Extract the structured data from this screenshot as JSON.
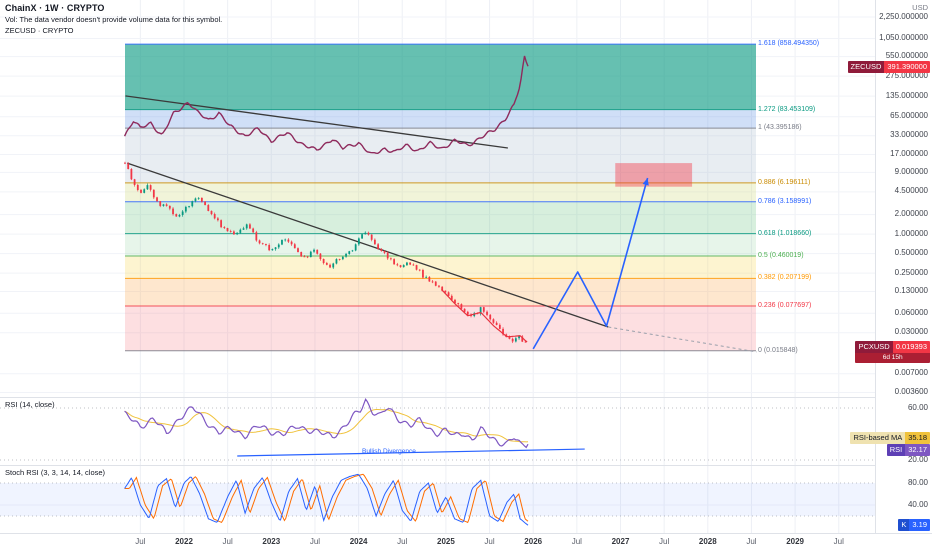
{
  "meta": {
    "symbol_title": "ChainX · 1W · CRYPTO",
    "vol_note": "Vol: The data vendor doesn't provide volume data for this symbol.",
    "overlay_title": "ZECUSD · CRYPTO"
  },
  "axis": {
    "currency_label": "USD",
    "price_ticks": [
      {
        "label": "2,250.000000",
        "value": 2250
      },
      {
        "label": "1,050.000000",
        "value": 1050
      },
      {
        "label": "550.000000",
        "value": 550
      },
      {
        "label": "275.000000",
        "value": 275
      },
      {
        "label": "135.000000",
        "value": 135
      },
      {
        "label": "65.000000",
        "value": 65
      },
      {
        "label": "33.000000",
        "value": 33
      },
      {
        "label": "17.000000",
        "value": 17
      },
      {
        "label": "9.000000",
        "value": 9
      },
      {
        "label": "4.500000",
        "value": 4.5
      },
      {
        "label": "2.000000",
        "value": 2
      },
      {
        "label": "1.000000",
        "value": 1
      },
      {
        "label": "0.500000",
        "value": 0.5
      },
      {
        "label": "0.250000",
        "value": 0.25
      },
      {
        "label": "0.130000",
        "value": 0.13
      },
      {
        "label": "0.060000",
        "value": 0.06
      },
      {
        "label": "0.030000",
        "value": 0.03
      },
      {
        "label": "0.007000",
        "value": 0.007
      },
      {
        "label": "0.003600",
        "value": 0.0036
      }
    ],
    "rsi_ticks": [
      {
        "label": "60.00",
        "value": 60
      },
      {
        "label": "20.00",
        "value": 20
      }
    ],
    "stoch_ticks": [
      {
        "label": "80.00",
        "value": 80
      },
      {
        "label": "40.00",
        "value": 40
      }
    ],
    "time_ticks": [
      {
        "label": "Jul",
        "t": 2021.5,
        "major": false
      },
      {
        "label": "2022",
        "t": 2022,
        "major": true
      },
      {
        "label": "Jul",
        "t": 2022.5,
        "major": false
      },
      {
        "label": "2023",
        "t": 2023,
        "major": true
      },
      {
        "label": "Jul",
        "t": 2023.5,
        "major": false
      },
      {
        "label": "2024",
        "t": 2024,
        "major": true
      },
      {
        "label": "Jul",
        "t": 2024.5,
        "major": false
      },
      {
        "label": "2025",
        "t": 2025,
        "major": true
      },
      {
        "label": "Jul",
        "t": 2025.5,
        "major": false
      },
      {
        "label": "2026",
        "t": 2026,
        "major": true
      },
      {
        "label": "Jul",
        "t": 2026.5,
        "major": false
      },
      {
        "label": "2027",
        "t": 2027,
        "major": true
      },
      {
        "label": "Jul",
        "t": 2027.5,
        "major": false
      },
      {
        "label": "2028",
        "t": 2028,
        "major": true
      },
      {
        "label": "Jul",
        "t": 2028.5,
        "major": false
      },
      {
        "label": "2029",
        "t": 2029,
        "major": true
      },
      {
        "label": "Jul",
        "t": 2029.5,
        "major": false
      }
    ]
  },
  "badges": {
    "zec": {
      "symbol": "ZECUSD",
      "price": "391.390000"
    },
    "pcx": {
      "symbol": "PCXUSD",
      "price": "0.019393",
      "countdown": "6d 15h"
    },
    "rsi_ma": {
      "label": "RSI-based MA",
      "value": "35.18"
    },
    "rsi": {
      "label": "RSI",
      "value": "32.17"
    },
    "stoch_k": {
      "label": "K",
      "value": "3.19"
    }
  },
  "rsi_pane": {
    "label": "RSI (14, close)",
    "divergence_label": "Bullish Divergence"
  },
  "stoch_pane": {
    "label": "Stoch RSI (3, 3, 14, 14, close)"
  },
  "colors": {
    "up": "#089981",
    "down": "#f23645",
    "zec_line": "#8e2a5c",
    "pcx_ma": "#e8323e",
    "arrow": "#2962ff",
    "target_box": "rgba(242,54,69,0.42)",
    "trendline": "#3a3a3a",
    "dashed_ext": "#9aa0ab",
    "rsi_line": "#7e57c2",
    "rsi_ma_line": "#f0c23c",
    "divergence": "#2962ff",
    "stoch_k": "#2962ff",
    "stoch_d": "#ff6d00",
    "badge_zec_name": "#8f1b3a",
    "badge_zec_value": "#f23645",
    "badge_pcx_name": "#8f1b3a",
    "badge_pcx_value": "#f23645",
    "badge_pcx_countdown": "#ab1f33",
    "badge_rsi_ma_name": "#efe2b0",
    "badge_rsi_ma_value": "#f0c23c",
    "badge_rsi_name": "#5d3fb5",
    "badge_rsi_value": "#7e57c2",
    "badge_k_name": "#1f4fd0",
    "badge_k_value": "#2962ff"
  },
  "chart_data": {
    "type": "candlestick",
    "title": "ChainX (PCXUSD) 1W with ZECUSD overlay, log price scale",
    "x_range": [
      2021.32,
      2029.6
    ],
    "y_axis": {
      "scale": "log",
      "unit": "USD",
      "visible_range": [
        0.003,
        4100
      ]
    },
    "fib_levels": [
      {
        "text": "1.618 (858.494350)",
        "value": 858.49435,
        "color": "#2962ff",
        "band_below": "rgba(8,153,129,0.62)"
      },
      {
        "text": "1.272 (83.453109)",
        "value": 83.453109,
        "color": "#089981",
        "band_below": "rgba(100,150,230,0.30)"
      },
      {
        "text": "1 (43.395186)",
        "value": 43.395186,
        "color": "#787b86",
        "band_below": "rgba(150,175,195,0.22)"
      },
      {
        "text": "0.886 (6.196111)",
        "value": 6.196111,
        "color": "#c98a00",
        "band_below": "rgba(210,220,130,0.30)"
      },
      {
        "text": "0.786 (3.158991)",
        "value": 3.158991,
        "color": "#2962ff",
        "band_below": "rgba(96,190,120,0.25)"
      },
      {
        "text": "0.618 (1.018660)",
        "value": 1.01866,
        "color": "#089981",
        "band_below": "rgba(120,200,140,0.18)"
      },
      {
        "text": "0.5 (0.460019)",
        "value": 0.460019,
        "color": "#4caf50",
        "band_below": "rgba(250,220,100,0.30)"
      },
      {
        "text": "0.382 (0.207199)",
        "value": 0.207199,
        "color": "#ff9800",
        "band_below": "rgba(250,170,80,0.28)"
      },
      {
        "text": "0.236 (0.077697)",
        "value": 0.077697,
        "color": "#f23645",
        "band_below": "rgba(244,110,120,0.22)"
      },
      {
        "text": "0 (0.015848)",
        "value": 0.015848,
        "color": "#787b86",
        "band_below": null
      }
    ],
    "series": {
      "pcx": {
        "name": "PCXUSD weekly closes",
        "points": [
          [
            2021.32,
            12.5
          ],
          [
            2021.4,
            7.5
          ],
          [
            2021.5,
            4.2
          ],
          [
            2021.58,
            5.5
          ],
          [
            2021.68,
            3.2
          ],
          [
            2021.8,
            2.6
          ],
          [
            2021.9,
            2.0
          ],
          [
            2022.0,
            2.3
          ],
          [
            2022.15,
            3.9
          ],
          [
            2022.3,
            2.2
          ],
          [
            2022.45,
            1.25
          ],
          [
            2022.6,
            0.95
          ],
          [
            2022.72,
            1.5
          ],
          [
            2022.85,
            0.75
          ],
          [
            2023.0,
            0.58
          ],
          [
            2023.15,
            0.88
          ],
          [
            2023.35,
            0.42
          ],
          [
            2023.5,
            0.55
          ],
          [
            2023.65,
            0.3
          ],
          [
            2023.8,
            0.45
          ],
          [
            2023.95,
            0.6
          ],
          [
            2024.05,
            1.15
          ],
          [
            2024.15,
            0.8
          ],
          [
            2024.3,
            0.48
          ],
          [
            2024.45,
            0.32
          ],
          [
            2024.6,
            0.36
          ],
          [
            2024.75,
            0.22
          ],
          [
            2024.9,
            0.155
          ],
          [
            2025.0,
            0.125
          ],
          [
            2025.1,
            0.092
          ],
          [
            2025.2,
            0.062
          ],
          [
            2025.3,
            0.052
          ],
          [
            2025.4,
            0.071
          ],
          [
            2025.52,
            0.044
          ],
          [
            2025.64,
            0.031
          ],
          [
            2025.74,
            0.023
          ],
          [
            2025.82,
            0.026
          ],
          [
            2025.9,
            0.0205
          ],
          [
            2025.94,
            0.019393
          ]
        ]
      },
      "zec": {
        "name": "ZECUSD weekly closes",
        "points": [
          [
            2021.32,
            33
          ],
          [
            2021.42,
            57
          ],
          [
            2021.5,
            43
          ],
          [
            2021.62,
            52
          ],
          [
            2021.75,
            33
          ],
          [
            2021.88,
            72
          ],
          [
            2022.05,
            110
          ],
          [
            2022.15,
            76
          ],
          [
            2022.28,
            58
          ],
          [
            2022.4,
            74
          ],
          [
            2022.52,
            47
          ],
          [
            2022.7,
            33
          ],
          [
            2022.85,
            42
          ],
          [
            2023.0,
            28
          ],
          [
            2023.18,
            36
          ],
          [
            2023.35,
            25
          ],
          [
            2023.52,
            19.5
          ],
          [
            2023.7,
            30
          ],
          [
            2023.82,
            21
          ],
          [
            2024.0,
            26
          ],
          [
            2024.15,
            16.5
          ],
          [
            2024.3,
            21
          ],
          [
            2024.42,
            18.5
          ],
          [
            2024.55,
            23.5
          ],
          [
            2024.68,
            19.5
          ],
          [
            2024.82,
            25
          ],
          [
            2024.95,
            21
          ],
          [
            2025.1,
            27.5
          ],
          [
            2025.25,
            23.5
          ],
          [
            2025.4,
            31
          ],
          [
            2025.55,
            40
          ],
          [
            2025.68,
            61
          ],
          [
            2025.78,
            97
          ],
          [
            2025.85,
            197
          ],
          [
            2025.9,
            540
          ],
          [
            2025.94,
            391.39
          ]
        ]
      },
      "pcx_ma": {
        "name": "PCX moving average",
        "points": [
          [
            2024.95,
            0.14
          ],
          [
            2025.1,
            0.085
          ],
          [
            2025.25,
            0.055
          ],
          [
            2025.4,
            0.062
          ],
          [
            2025.55,
            0.038
          ],
          [
            2025.7,
            0.026
          ],
          [
            2025.85,
            0.027
          ],
          [
            2025.94,
            0.021
          ]
        ]
      },
      "rsi": {
        "name": "RSI (14)",
        "points": [
          [
            2021.32,
            55
          ],
          [
            2021.5,
            46
          ],
          [
            2021.65,
            52
          ],
          [
            2021.8,
            40
          ],
          [
            2021.95,
            53
          ],
          [
            2022.1,
            60
          ],
          [
            2022.25,
            50
          ],
          [
            2022.4,
            41
          ],
          [
            2022.55,
            44
          ],
          [
            2022.7,
            39
          ],
          [
            2022.85,
            46
          ],
          [
            2023.0,
            42
          ],
          [
            2023.15,
            40
          ],
          [
            2023.3,
            46
          ],
          [
            2023.5,
            42
          ],
          [
            2023.7,
            38
          ],
          [
            2023.85,
            47
          ],
          [
            2023.95,
            54
          ],
          [
            2024.02,
            58
          ],
          [
            2024.08,
            66
          ],
          [
            2024.16,
            58
          ],
          [
            2024.25,
            54
          ],
          [
            2024.33,
            60
          ],
          [
            2024.45,
            52
          ],
          [
            2024.6,
            47
          ],
          [
            2024.7,
            50
          ],
          [
            2024.8,
            44
          ],
          [
            2024.9,
            41
          ],
          [
            2025.0,
            43
          ],
          [
            2025.1,
            38
          ],
          [
            2025.2,
            41
          ],
          [
            2025.3,
            36
          ],
          [
            2025.4,
            43
          ],
          [
            2025.5,
            38
          ],
          [
            2025.6,
            34
          ],
          [
            2025.7,
            33
          ],
          [
            2025.78,
            37
          ],
          [
            2025.86,
            31
          ],
          [
            2025.94,
            32.17
          ]
        ]
      },
      "stoch_k": {
        "name": "Stoch RSI K",
        "points": [
          [
            2021.32,
            70
          ],
          [
            2021.4,
            90
          ],
          [
            2021.5,
            40
          ],
          [
            2021.6,
            15
          ],
          [
            2021.7,
            75
          ],
          [
            2021.8,
            88
          ],
          [
            2021.9,
            35
          ],
          [
            2022.0,
            80
          ],
          [
            2022.08,
            92
          ],
          [
            2022.18,
            60
          ],
          [
            2022.28,
            15
          ],
          [
            2022.38,
            8
          ],
          [
            2022.5,
            55
          ],
          [
            2022.6,
            85
          ],
          [
            2022.7,
            25
          ],
          [
            2022.8,
            70
          ],
          [
            2022.9,
            90
          ],
          [
            2023.0,
            45
          ],
          [
            2023.1,
            10
          ],
          [
            2023.2,
            65
          ],
          [
            2023.3,
            88
          ],
          [
            2023.4,
            30
          ],
          [
            2023.5,
            75
          ],
          [
            2023.6,
            12
          ],
          [
            2023.7,
            55
          ],
          [
            2023.8,
            85
          ],
          [
            2023.9,
            92
          ],
          [
            2024.0,
            96
          ],
          [
            2024.1,
            70
          ],
          [
            2024.2,
            20
          ],
          [
            2024.3,
            60
          ],
          [
            2024.4,
            85
          ],
          [
            2024.5,
            30
          ],
          [
            2024.6,
            10
          ],
          [
            2024.7,
            65
          ],
          [
            2024.8,
            80
          ],
          [
            2024.9,
            25
          ],
          [
            2025.0,
            55
          ],
          [
            2025.1,
            15
          ],
          [
            2025.2,
            8
          ],
          [
            2025.3,
            70
          ],
          [
            2025.4,
            85
          ],
          [
            2025.5,
            20
          ],
          [
            2025.6,
            10
          ],
          [
            2025.7,
            45
          ],
          [
            2025.78,
            60
          ],
          [
            2025.85,
            15
          ],
          [
            2025.94,
            3.19
          ]
        ]
      }
    },
    "drawings": {
      "trendline_zec": {
        "points": [
          [
            2021.33,
            136
          ],
          [
            2025.71,
            21.4
          ]
        ]
      },
      "trendline_pcx": {
        "points": [
          [
            2021.35,
            12.5
          ],
          [
            2026.86,
            0.0368
          ]
        ],
        "dashed_ext": [
          [
            2026.86,
            0.0368
          ],
          [
            2028.56,
            0.0152
          ]
        ]
      },
      "projection_arrow": {
        "points": [
          [
            2026.0,
            0.0169
          ],
          [
            2026.51,
            0.26
          ],
          [
            2026.84,
            0.0381
          ],
          [
            2027.31,
            7.36
          ]
        ]
      },
      "target_box": {
        "t1": 2026.94,
        "t2": 2027.82,
        "price_top": 12.5,
        "price_bottom": 5.4
      },
      "rsi_divergence_line": {
        "points": [
          [
            2022.61,
            23.1
          ],
          [
            2026.59,
            28.4
          ]
        ]
      }
    }
  }
}
